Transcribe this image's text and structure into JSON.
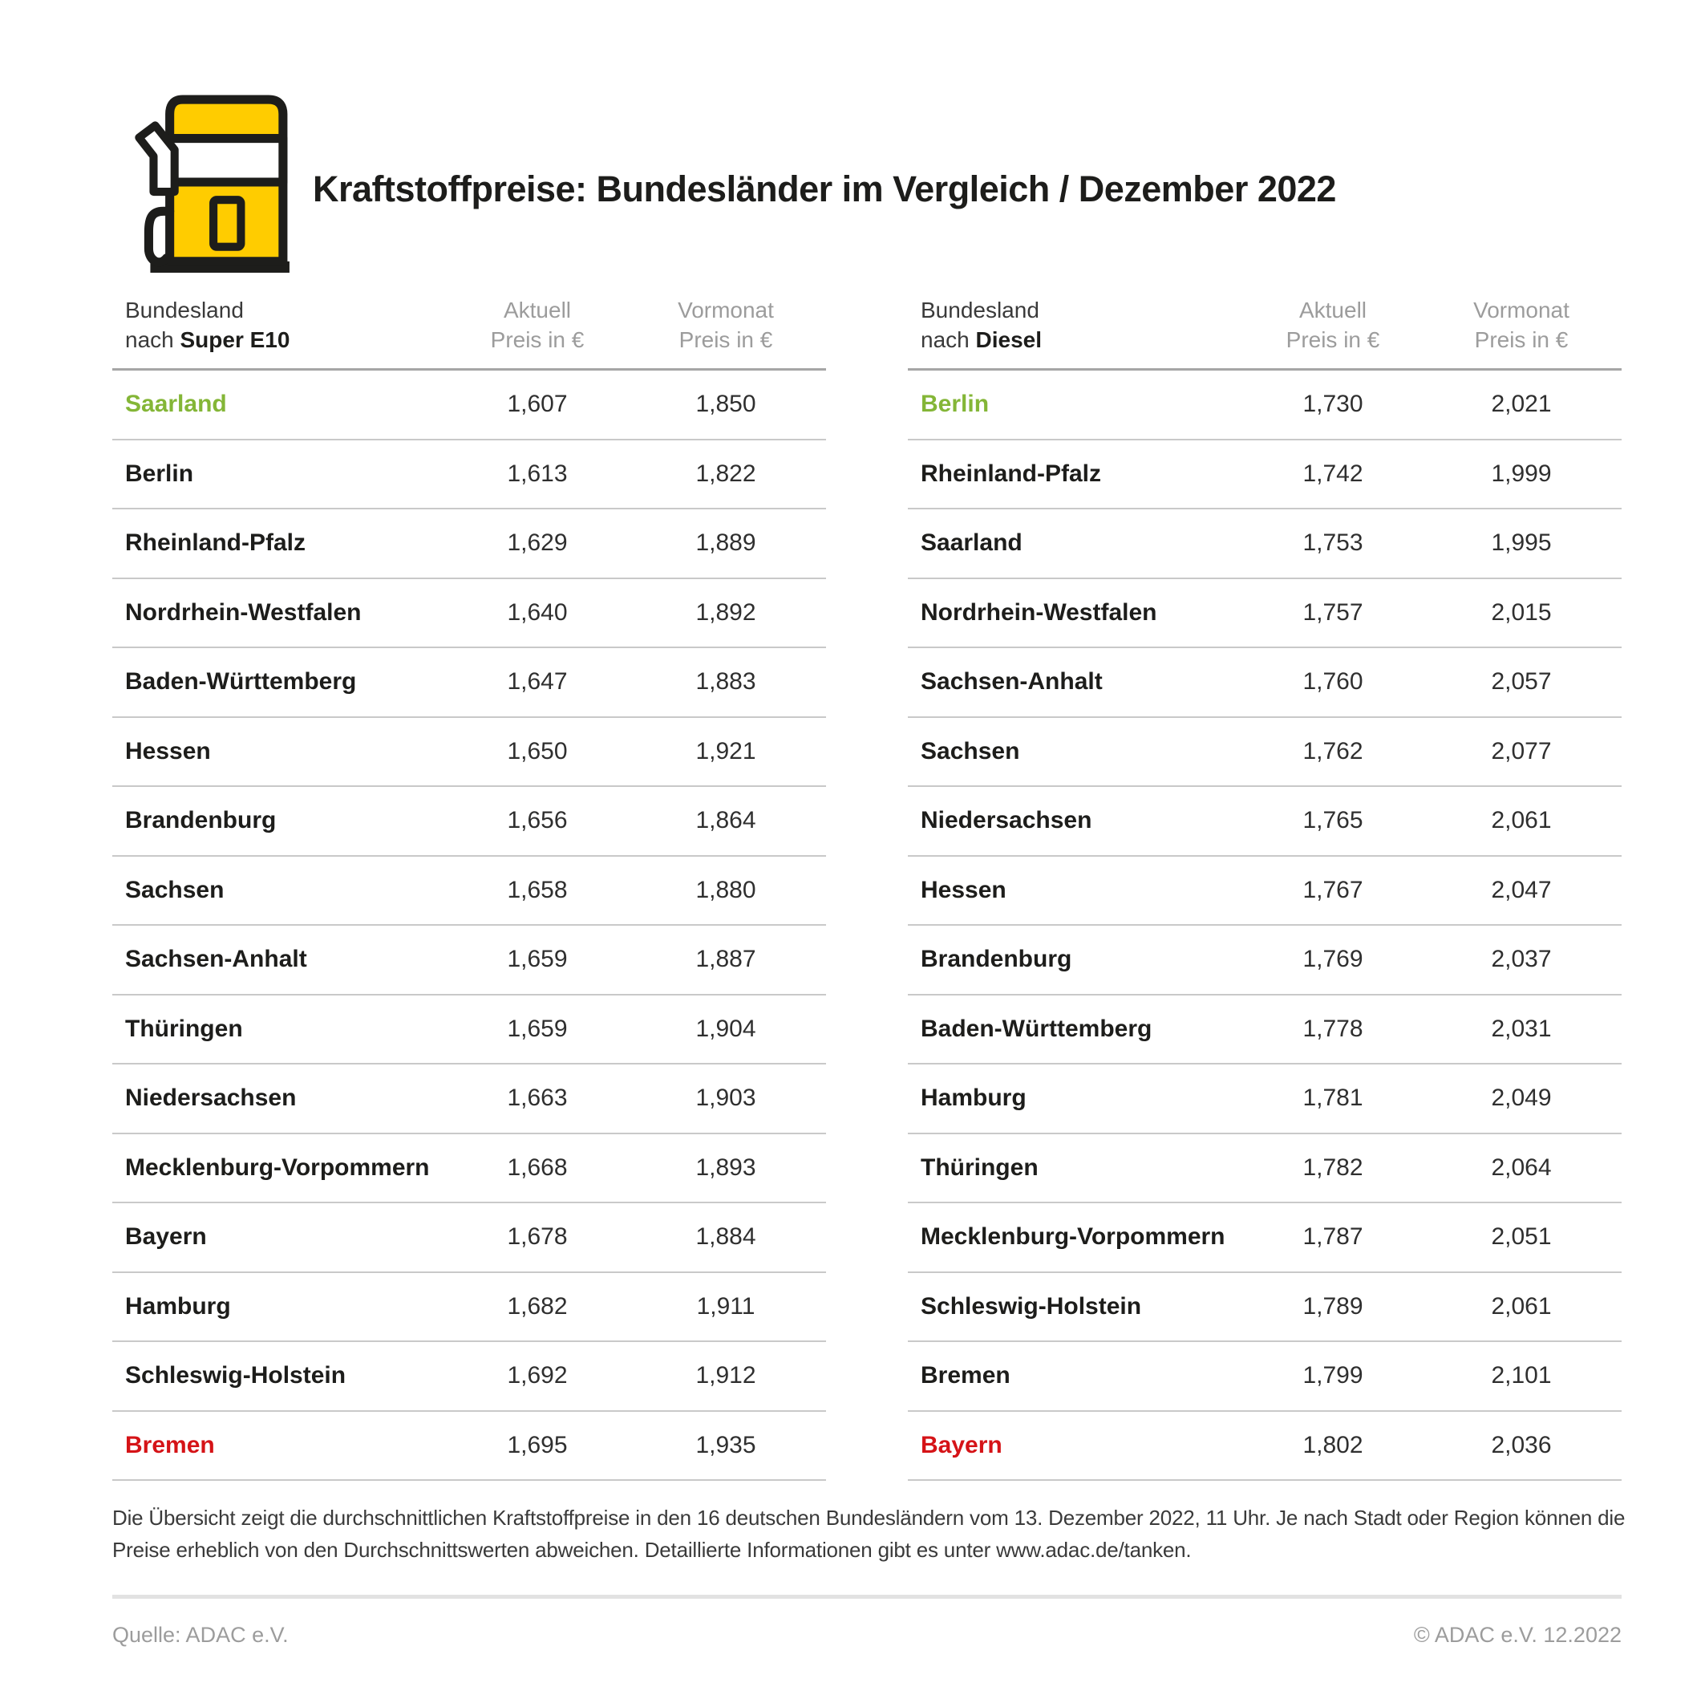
{
  "page": {
    "title": "Kraftstoffpreise: Bundesländer im Vergleich / Dezember 2022"
  },
  "colors": {
    "accent_yellow": "#FFCC00",
    "line_black": "#1D1D1B",
    "best_green": "#84B637",
    "worst_red": "#D51317",
    "header_gray": "#9C9C9C",
    "row_line": "#C9C9C9",
    "header_line": "#A6A6A6",
    "divider_gray": "#E2E2E2"
  },
  "chart_data": [
    {
      "type": "table",
      "title": "Kraftstoffpreise: Bundesländer im Vergleich / Dezember 2022",
      "fuel": "Super E10",
      "col_headers": {
        "state_line1": "Bundesland",
        "state_line2_prefix": "nach ",
        "state_line2_fuel": "Super E10",
        "current_line1": "Aktuell",
        "current_line2": "Preis in €",
        "previous_line1": "Vormonat",
        "previous_line2": "Preis in €"
      },
      "rows": [
        {
          "state": "Saarland",
          "current": "1,607",
          "previous": "1,850",
          "highlight": "green"
        },
        {
          "state": "Berlin",
          "current": "1,613",
          "previous": "1,822"
        },
        {
          "state": "Rheinland-Pfalz",
          "current": "1,629",
          "previous": "1,889"
        },
        {
          "state": "Nordrhein-Westfalen",
          "current": "1,640",
          "previous": "1,892"
        },
        {
          "state": "Baden-Württemberg",
          "current": "1,647",
          "previous": "1,883"
        },
        {
          "state": "Hessen",
          "current": "1,650",
          "previous": "1,921"
        },
        {
          "state": "Brandenburg",
          "current": "1,656",
          "previous": "1,864"
        },
        {
          "state": "Sachsen",
          "current": "1,658",
          "previous": "1,880"
        },
        {
          "state": "Sachsen-Anhalt",
          "current": "1,659",
          "previous": "1,887"
        },
        {
          "state": "Thüringen",
          "current": "1,659",
          "previous": "1,904"
        },
        {
          "state": "Niedersachsen",
          "current": "1,663",
          "previous": "1,903"
        },
        {
          "state": "Mecklenburg-Vorpommern",
          "current": "1,668",
          "previous": "1,893"
        },
        {
          "state": "Bayern",
          "current": "1,678",
          "previous": "1,884"
        },
        {
          "state": "Hamburg",
          "current": "1,682",
          "previous": "1,911"
        },
        {
          "state": "Schleswig-Holstein",
          "current": "1,692",
          "previous": "1,912"
        },
        {
          "state": "Bremen",
          "current": "1,695",
          "previous": "1,935",
          "highlight": "red"
        }
      ]
    },
    {
      "type": "table",
      "title": "Kraftstoffpreise: Bundesländer im Vergleich / Dezember 2022",
      "fuel": "Diesel",
      "col_headers": {
        "state_line1": "Bundesland",
        "state_line2_prefix": "nach ",
        "state_line2_fuel": "Diesel",
        "current_line1": "Aktuell",
        "current_line2": "Preis in €",
        "previous_line1": "Vormonat",
        "previous_line2": "Preis in €"
      },
      "rows": [
        {
          "state": "Berlin",
          "current": "1,730",
          "previous": "2,021",
          "highlight": "green"
        },
        {
          "state": "Rheinland-Pfalz",
          "current": "1,742",
          "previous": "1,999"
        },
        {
          "state": "Saarland",
          "current": "1,753",
          "previous": "1,995"
        },
        {
          "state": "Nordrhein-Westfalen",
          "current": "1,757",
          "previous": "2,015"
        },
        {
          "state": "Sachsen-Anhalt",
          "current": "1,760",
          "previous": "2,057"
        },
        {
          "state": "Sachsen",
          "current": "1,762",
          "previous": "2,077"
        },
        {
          "state": "Niedersachsen",
          "current": "1,765",
          "previous": "2,061"
        },
        {
          "state": "Hessen",
          "current": "1,767",
          "previous": "2,047"
        },
        {
          "state": "Brandenburg",
          "current": "1,769",
          "previous": "2,037"
        },
        {
          "state": "Baden-Württemberg",
          "current": "1,778",
          "previous": "2,031"
        },
        {
          "state": "Hamburg",
          "current": "1,781",
          "previous": "2,049"
        },
        {
          "state": "Thüringen",
          "current": "1,782",
          "previous": "2,064"
        },
        {
          "state": "Mecklenburg-Vorpommern",
          "current": "1,787",
          "previous": "2,051"
        },
        {
          "state": "Schleswig-Holstein",
          "current": "1,789",
          "previous": "2,061"
        },
        {
          "state": "Bremen",
          "current": "1,799",
          "previous": "2,101"
        },
        {
          "state": "Bayern",
          "current": "1,802",
          "previous": "2,036",
          "highlight": "red"
        }
      ]
    }
  ],
  "footnote": {
    "line1": "Die Übersicht zeigt die durchschnittlichen Kraftstoffpreise in den 16 deutschen Bundesländern vom 13. Dezember 2022, 11 Uhr. Je nach Stadt oder Region können die",
    "line2": "Preise erheblich von den Durchschnittswerten abweichen. Detaillierte Informationen gibt es unter www.adac.de/tanken."
  },
  "footer": {
    "source": "Quelle: ADAC e.V.",
    "copyright": "© ADAC e.V. 12.2022"
  }
}
